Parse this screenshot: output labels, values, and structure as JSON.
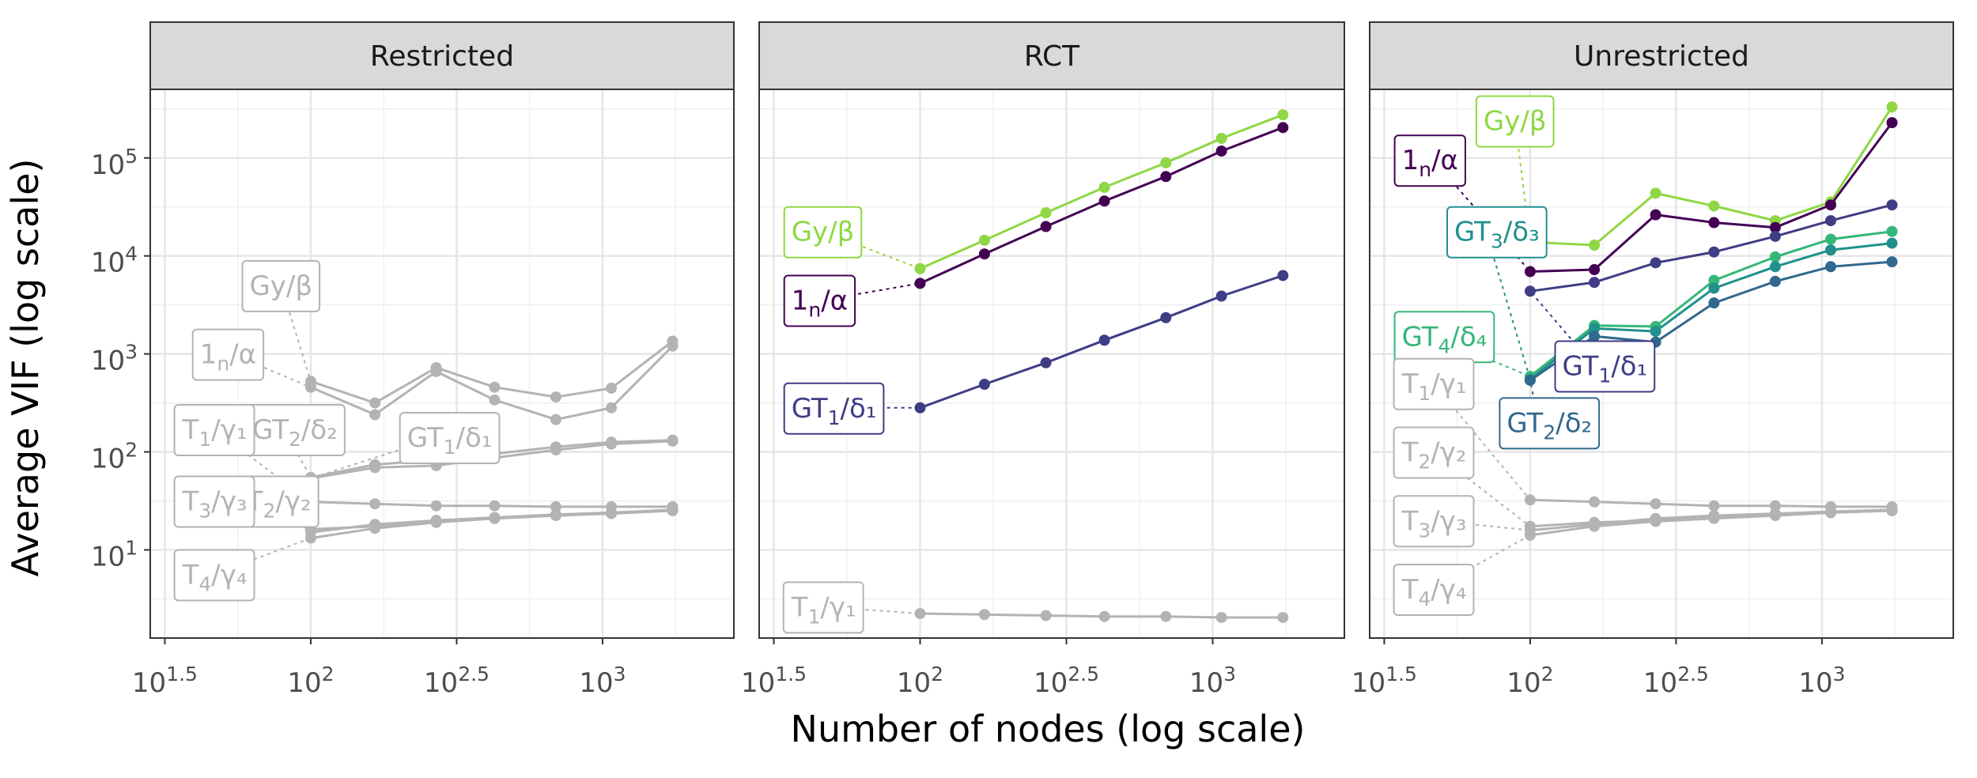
{
  "chart_data": {
    "type": "line",
    "xlabel": "Number of nodes (log scale)",
    "ylabel": "Average VIF (log scale)",
    "x_ticks": [
      {
        "value": 1.5,
        "base": "10",
        "exp": "1.5"
      },
      {
        "value": 2.0,
        "base": "10",
        "exp": "2"
      },
      {
        "value": 2.5,
        "base": "10",
        "exp": "2.5"
      },
      {
        "value": 3.0,
        "base": "10",
        "exp": "3"
      }
    ],
    "y_ticks": [
      {
        "value": 1,
        "base": "10",
        "exp": "1"
      },
      {
        "value": 2,
        "base": "10",
        "exp": "2"
      },
      {
        "value": 3,
        "base": "10",
        "exp": "3"
      },
      {
        "value": 4,
        "base": "10",
        "exp": "4"
      },
      {
        "value": 5,
        "base": "10",
        "exp": "5"
      }
    ],
    "xlim_log10": [
      1.45,
      3.45
    ],
    "ylim_log10": [
      0.1,
      5.7
    ],
    "x_log10": [
      2.0,
      2.22,
      2.43,
      2.63,
      2.84,
      3.03,
      3.24
    ],
    "colors": {
      "one": "#440154",
      "gt1": "#3f3d85",
      "gt2": "#31688e",
      "gt3": "#21908d",
      "gt4": "#35b779",
      "gy": "#8fd744",
      "grey": "#b3b3b3"
    },
    "panels": [
      {
        "title": "Restricted",
        "series": [
          {
            "id": "1n",
            "color": "grey",
            "y": [
              2.66,
              2.38,
              2.82,
              2.53,
              2.33,
              2.45,
              3.08
            ],
            "label": {
              "base": "1",
              "sub": "n",
              "rest": "/α"
            },
            "label_at": [
              1.62,
              3.0
            ]
          },
          {
            "id": "gy",
            "color": "grey",
            "y": [
              2.72,
              2.5,
              2.86,
              2.66,
              2.56,
              2.65,
              3.13
            ],
            "label": {
              "base": "Gy/β",
              "sub": "",
              "rest": ""
            },
            "label_at": [
              1.79,
              3.7
            ]
          },
          {
            "id": "gt1",
            "color": "grey",
            "y": [
              1.73,
              1.84,
              1.86,
              1.94,
              2.02,
              2.08,
              2.11
            ],
            "label": {
              "base": "GT",
              "sub": "1",
              "rest": "/δ₁"
            },
            "label_at": [
              2.33,
              2.15
            ]
          },
          {
            "id": "gt2",
            "color": "grey",
            "y": [
              1.74,
              1.87,
              1.92,
              1.98,
              2.05,
              2.1,
              2.12
            ],
            "label": {
              "base": "GT",
              "sub": "2",
              "rest": "/δ₂"
            },
            "label_at": [
              1.8,
              2.23
            ]
          },
          {
            "id": "t1",
            "color": "grey",
            "y": [
              1.49,
              1.47,
              1.45,
              1.45,
              1.44,
              1.44,
              1.44
            ],
            "label": {
              "base": "T",
              "sub": "1",
              "rest": "/γ₁"
            },
            "label_at": [
              1.56,
              2.23
            ]
          },
          {
            "id": "t2",
            "color": "grey",
            "y": [
              1.18,
              1.26,
              1.3,
              1.33,
              1.36,
              1.38,
              1.4
            ],
            "label": {
              "base": "T",
              "sub": "2",
              "rest": "/γ₂"
            },
            "label_at": [
              1.78,
              1.5
            ]
          },
          {
            "id": "t3",
            "color": "grey",
            "y": [
              1.21,
              1.24,
              1.3,
              1.33,
              1.36,
              1.38,
              1.41
            ],
            "label": {
              "base": "T",
              "sub": "3",
              "rest": "/γ₃"
            },
            "label_at": [
              1.56,
              1.5
            ]
          },
          {
            "id": "t4",
            "color": "grey",
            "y": [
              1.12,
              1.22,
              1.28,
              1.32,
              1.35,
              1.37,
              1.4
            ],
            "label": {
              "base": "T",
              "sub": "4",
              "rest": "/γ₄"
            },
            "label_at": [
              1.56,
              0.75
            ]
          }
        ]
      },
      {
        "title": "RCT",
        "series": [
          {
            "id": "gy",
            "color": "gy",
            "y": [
              3.87,
              4.16,
              4.44,
              4.7,
              4.95,
              5.2,
              5.44
            ],
            "label": {
              "base": "Gy/β",
              "sub": "",
              "rest": ""
            },
            "label_at": [
              1.56,
              4.25
            ]
          },
          {
            "id": "1n",
            "color": "one",
            "y": [
              3.72,
              4.02,
              4.3,
              4.56,
              4.81,
              5.07,
              5.31
            ],
            "label": {
              "base": "1",
              "sub": "n",
              "rest": "/α"
            },
            "label_at": [
              1.56,
              3.55
            ]
          },
          {
            "id": "gt1",
            "color": "gt1",
            "y": [
              2.45,
              2.69,
              2.91,
              3.14,
              3.37,
              3.59,
              3.8
            ],
            "label": {
              "base": "GT",
              "sub": "1",
              "rest": "/δ₁"
            },
            "label_at": [
              1.56,
              2.45
            ]
          },
          {
            "id": "t1",
            "color": "grey",
            "y": [
              0.35,
              0.34,
              0.33,
              0.32,
              0.32,
              0.31,
              0.31
            ],
            "label": {
              "base": "T",
              "sub": "1",
              "rest": "/γ₁"
            },
            "label_at": [
              1.56,
              0.42
            ]
          }
        ]
      },
      {
        "title": "Unrestricted",
        "series": [
          {
            "id": "gy",
            "color": "gy",
            "y": [
              4.14,
              4.11,
              4.64,
              4.51,
              4.36,
              4.55,
              5.52
            ],
            "label": {
              "base": "Gy/β",
              "sub": "",
              "rest": ""
            },
            "label_at": [
              1.84,
              5.38
            ]
          },
          {
            "id": "1n",
            "color": "one",
            "y": [
              3.84,
              3.86,
              4.42,
              4.34,
              4.29,
              4.52,
              5.36
            ],
            "label": {
              "base": "1",
              "sub": "n",
              "rest": "/α"
            },
            "label_at": [
              1.56,
              4.98
            ]
          },
          {
            "id": "gt1",
            "color": "gt1",
            "y": [
              3.64,
              3.73,
              3.93,
              4.04,
              4.2,
              4.36,
              4.52
            ],
            "label": {
              "base": "GT",
              "sub": "1",
              "rest": "/δ₁"
            },
            "label_at": [
              2.11,
              2.88
            ]
          },
          {
            "id": "gt4",
            "color": "gt4",
            "y": [
              2.77,
              3.29,
              3.28,
              3.75,
              3.99,
              4.17,
              4.25
            ],
            "label": {
              "base": "GT",
              "sub": "4",
              "rest": "/δ₄"
            },
            "label_at": [
              1.56,
              3.18
            ]
          },
          {
            "id": "gt3",
            "color": "gt3",
            "y": [
              2.74,
              3.26,
              3.23,
              3.67,
              3.89,
              4.06,
              4.13
            ],
            "label": {
              "base": "GT",
              "sub": "3",
              "rest": "/δ₃"
            },
            "label_at": [
              1.74,
              4.25
            ]
          },
          {
            "id": "gt2",
            "color": "gt2",
            "y": [
              2.73,
              3.18,
              3.12,
              3.52,
              3.74,
              3.89,
              3.94
            ],
            "label": {
              "base": "GT",
              "sub": "2",
              "rest": "/δ₂"
            },
            "label_at": [
              1.92,
              2.3
            ]
          },
          {
            "id": "t1",
            "color": "grey",
            "y": [
              1.51,
              1.49,
              1.47,
              1.45,
              1.45,
              1.44,
              1.44
            ],
            "label": {
              "base": "T",
              "sub": "1",
              "rest": "/γ₁"
            },
            "label_at": [
              1.56,
              2.7
            ]
          },
          {
            "id": "t2",
            "color": "grey",
            "y": [
              1.24,
              1.28,
              1.3,
              1.34,
              1.36,
              1.38,
              1.4
            ],
            "label": {
              "base": "T",
              "sub": "2",
              "rest": "/γ₂"
            },
            "label_at": [
              1.56,
              2.0
            ]
          },
          {
            "id": "t3",
            "color": "grey",
            "y": [
              1.2,
              1.26,
              1.32,
              1.35,
              1.37,
              1.39,
              1.41
            ],
            "label": {
              "base": "T",
              "sub": "3",
              "rest": "/γ₃"
            },
            "label_at": [
              1.56,
              1.3
            ]
          },
          {
            "id": "t4",
            "color": "grey",
            "y": [
              1.15,
              1.24,
              1.29,
              1.32,
              1.35,
              1.38,
              1.4
            ],
            "label": {
              "base": "T",
              "sub": "4",
              "rest": "/γ₄"
            },
            "label_at": [
              1.56,
              0.6
            ]
          }
        ]
      }
    ]
  }
}
